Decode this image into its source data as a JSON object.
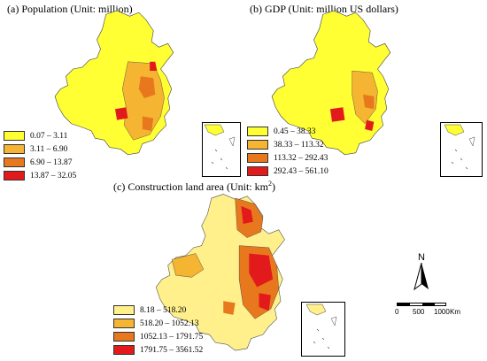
{
  "panels": [
    {
      "title": "(a) Population (Unit: million)",
      "legend": [
        {
          "label": "0.07 – 3.11",
          "color": "#ffff33"
        },
        {
          "label": "3.11 – 6.90",
          "color": "#f5b431"
        },
        {
          "label": "6.90 – 13.87",
          "color": "#e8781e"
        },
        {
          "label": "13.87 – 32.05",
          "color": "#e31a1c"
        }
      ]
    },
    {
      "title": "(b) GDP (Unit: million US dollars)",
      "legend": [
        {
          "label": "0.45 – 38.33",
          "color": "#ffff33"
        },
        {
          "label": "38.33 – 113.32",
          "color": "#f5b431"
        },
        {
          "label": "113.32 – 292.43",
          "color": "#e8781e"
        },
        {
          "label": "292.43 – 561.10",
          "color": "#e31a1c"
        }
      ]
    },
    {
      "title": "(c) Construction land area (Unit: km",
      "title_sup": "2",
      "title_end": ")",
      "legend": [
        {
          "label": "8.18 – 518.20",
          "color": "#fff08c"
        },
        {
          "label": "518.20 – 1052.13",
          "color": "#f5b431"
        },
        {
          "label": "1052.13 – 1791.75",
          "color": "#e8781e"
        },
        {
          "label": "1791.75 – 3561.52",
          "color": "#e31a1c"
        }
      ]
    }
  ],
  "north_arrow": {
    "label": "N"
  },
  "scale_bar": {
    "ticks": [
      "0",
      "500",
      "1000"
    ],
    "unit": "Km"
  }
}
